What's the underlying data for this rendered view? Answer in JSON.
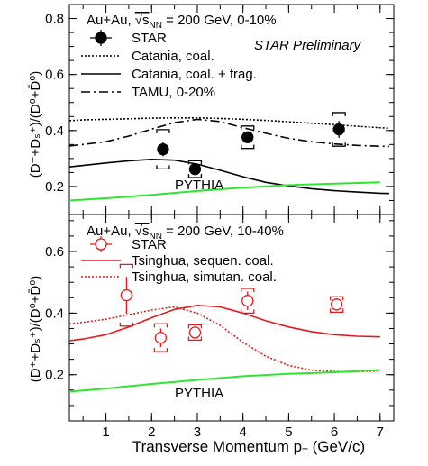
{
  "figure": {
    "x_title": "Transverse Momentum p",
    "x_title_sub": "T",
    "x_title_unit": " (GeV/c)",
    "y_title_top": "(D⁺+Dₛ⁺)/(D⁰+D̄⁰)",
    "y_title_bottom": "(D⁺+Dₛ⁺)/(D⁰+D̄⁰)"
  },
  "colors": {
    "black": "#000000",
    "red": "#e41a1c",
    "green": "#2ee62e",
    "preliminary": "#e41a1c"
  },
  "chart_data": [
    {
      "type": "line",
      "panel": "top",
      "header": {
        "system": "Au+Au, ",
        "root": "√s",
        "root_sub": "NN",
        "rest": " = 200 GeV, 0-10%"
      },
      "preliminary_label": "STAR Preliminary",
      "annotations": [
        "PYTHIA"
      ],
      "xlim": [
        0.2,
        7.3
      ],
      "ylim": [
        0.1,
        0.85
      ],
      "x_ticks": [
        1,
        2,
        3,
        4,
        5,
        6,
        7
      ],
      "y_ticks": [
        0.2,
        0.4,
        0.6,
        0.8
      ],
      "y_tick_labels": [
        "0.2",
        "0.4",
        "0.6",
        "0.8"
      ],
      "series": [
        {
          "name": "STAR",
          "kind": "points",
          "color": "#000000",
          "marker": "filled-circle",
          "x": [
            2.25,
            2.95,
            4.1,
            6.1
          ],
          "y": [
            0.333,
            0.262,
            0.376,
            0.404
          ],
          "stat_err": [
            0.025,
            0.018,
            0.02,
            0.03
          ],
          "sys_err": [
            0.07,
            0.03,
            0.04,
            0.06
          ]
        },
        {
          "name": "Catania, coal.",
          "kind": "line",
          "style": "dotted",
          "color": "#000000",
          "x": [
            0.2,
            0.5,
            1,
            1.5,
            2,
            2.5,
            3,
            3.5,
            4,
            4.5,
            5,
            5.5,
            6,
            6.5,
            7,
            7.2
          ],
          "y": [
            0.435,
            0.438,
            0.44,
            0.442,
            0.444,
            0.445,
            0.445,
            0.443,
            0.44,
            0.436,
            0.431,
            0.426,
            0.421,
            0.415,
            0.41,
            0.408
          ]
        },
        {
          "name": "Catania, coal. + frag.",
          "kind": "line",
          "style": "solid",
          "color": "#000000",
          "x": [
            0.2,
            0.5,
            1,
            1.5,
            2,
            2.5,
            3,
            3.5,
            4,
            4.5,
            5,
            5.5,
            6,
            6.5,
            7,
            7.2
          ],
          "y": [
            0.27,
            0.275,
            0.284,
            0.292,
            0.297,
            0.294,
            0.28,
            0.258,
            0.235,
            0.215,
            0.202,
            0.192,
            0.185,
            0.18,
            0.176,
            0.175
          ]
        },
        {
          "name": "TAMU, 0-20%",
          "kind": "line",
          "style": "dashdot",
          "color": "#000000",
          "x": [
            0.2,
            0.5,
            1,
            1.5,
            2,
            2.5,
            3,
            3.5,
            4,
            4.5,
            5,
            5.5,
            6,
            6.5,
            7,
            7.2
          ],
          "y": [
            0.345,
            0.35,
            0.36,
            0.38,
            0.405,
            0.428,
            0.44,
            0.432,
            0.41,
            0.39,
            0.372,
            0.36,
            0.352,
            0.347,
            0.344,
            0.343
          ]
        },
        {
          "name": "",
          "kind": "line",
          "style": "solid",
          "color": "#2ee62e",
          "legend": false,
          "label": "PYTHIA",
          "x": [
            0.2,
            1,
            2,
            3,
            4,
            5,
            6,
            7
          ],
          "y": [
            0.15,
            0.158,
            0.17,
            0.184,
            0.196,
            0.205,
            0.21,
            0.215
          ]
        }
      ]
    },
    {
      "type": "line",
      "panel": "bottom",
      "header": {
        "system": "Au+Au, ",
        "root": "√s",
        "root_sub": "NN",
        "rest": " = 200 GeV, 10-40%"
      },
      "annotations": [
        "PYTHIA"
      ],
      "xlim": [
        0.2,
        7.3
      ],
      "ylim": [
        0.05,
        0.72
      ],
      "x_ticks": [
        1,
        2,
        3,
        4,
        5,
        6,
        7
      ],
      "x_tick_labels": [
        "1",
        "2",
        "3",
        "4",
        "5",
        "6",
        "7"
      ],
      "y_ticks": [
        0.2,
        0.4,
        0.6
      ],
      "y_tick_labels": [
        "0.2",
        "0.4",
        "0.6"
      ],
      "series": [
        {
          "name": "STAR",
          "kind": "points",
          "color": "#e41a1c",
          "marker": "open-circle",
          "x": [
            1.45,
            2.2,
            2.95,
            4.1,
            6.05
          ],
          "y": [
            0.458,
            0.32,
            0.337,
            0.44,
            0.428
          ],
          "stat_err": [
            0.06,
            0.03,
            0.02,
            0.03,
            0.02
          ],
          "sys_err": [
            0.1,
            0.045,
            0.025,
            0.04,
            0.025
          ]
        },
        {
          "name": "Tsinghua, sequen. coal.",
          "kind": "line",
          "style": "solid",
          "color": "#e41a1c",
          "x": [
            0.2,
            0.5,
            1,
            1.5,
            2,
            2.5,
            3,
            3.5,
            4,
            4.5,
            5,
            5.5,
            6,
            6.5,
            7
          ],
          "y": [
            0.31,
            0.316,
            0.33,
            0.355,
            0.385,
            0.412,
            0.425,
            0.42,
            0.4,
            0.375,
            0.355,
            0.34,
            0.33,
            0.325,
            0.323
          ]
        },
        {
          "name": "Tsinghua, simutan. coal.",
          "kind": "line",
          "style": "dotted",
          "color": "#e41a1c",
          "x": [
            0.2,
            0.5,
            1,
            1.5,
            2,
            2.5,
            3,
            3.5,
            4,
            4.5,
            5,
            5.5,
            6,
            6.5,
            7
          ],
          "y": [
            0.365,
            0.37,
            0.38,
            0.395,
            0.41,
            0.42,
            0.4,
            0.36,
            0.305,
            0.26,
            0.23,
            0.215,
            0.21,
            0.21,
            0.212
          ]
        },
        {
          "name": "",
          "kind": "line",
          "style": "solid",
          "color": "#2ee62e",
          "legend": false,
          "label": "PYTHIA",
          "x": [
            0.2,
            1,
            2,
            3,
            4,
            5,
            6,
            7
          ],
          "y": [
            0.145,
            0.155,
            0.17,
            0.183,
            0.195,
            0.203,
            0.208,
            0.215
          ]
        }
      ]
    }
  ]
}
